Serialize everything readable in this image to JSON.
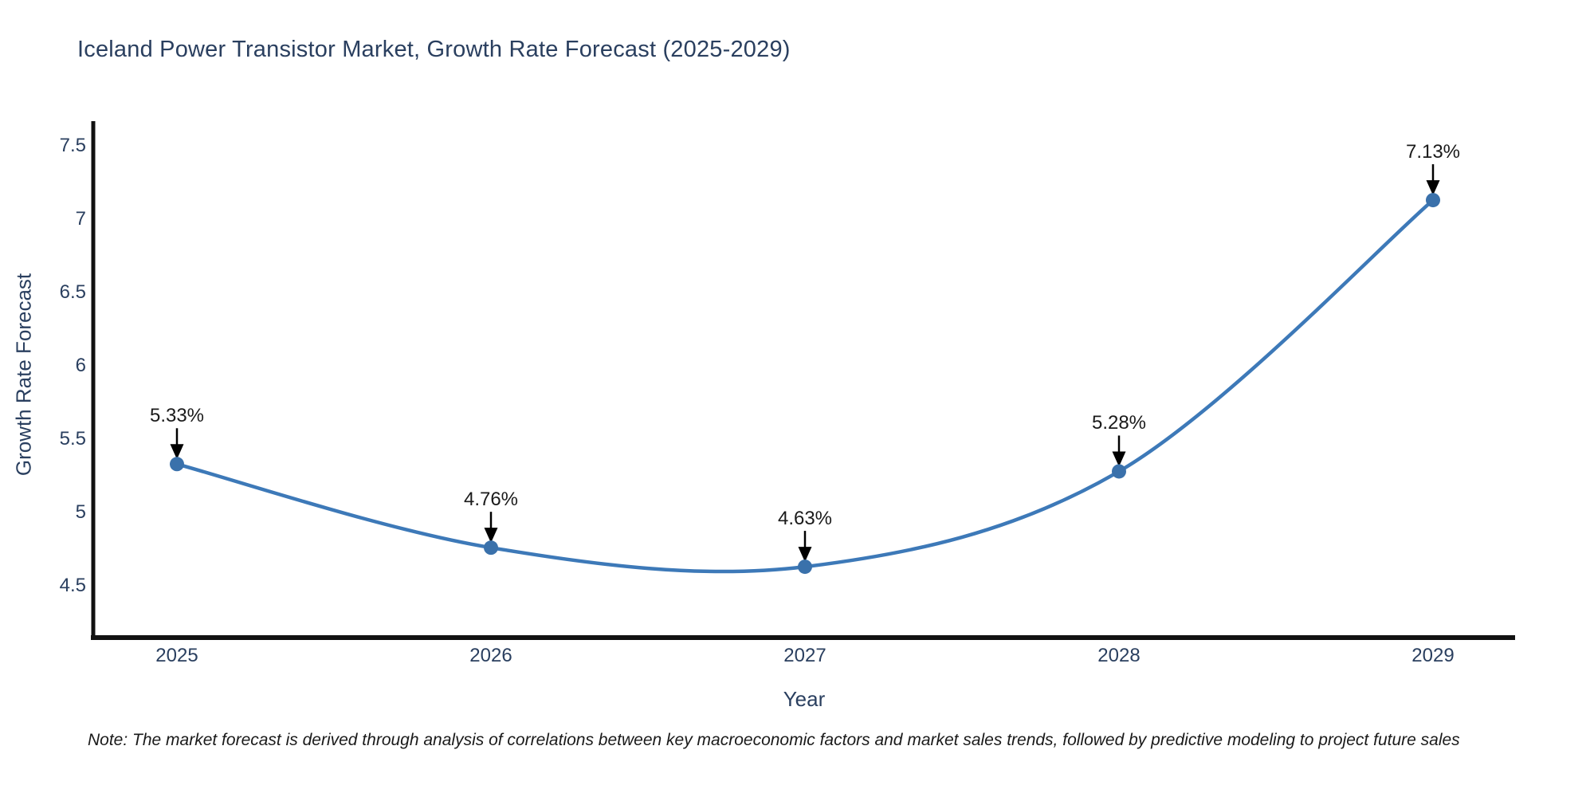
{
  "title": "Iceland Power Transistor Market, Growth Rate Forecast (2025-2029)",
  "note": "Note: The market forecast is derived through analysis of correlations between key macroeconomic factors and market sales trends, followed by predictive modeling to project future sales",
  "chart_data": {
    "type": "line",
    "title": "Iceland Power Transistor Market, Growth Rate Forecast (2025-2029)",
    "xlabel": "Year",
    "ylabel": "Growth Rate Forecast",
    "categories": [
      "2025",
      "2026",
      "2027",
      "2028",
      "2029"
    ],
    "series": [
      {
        "name": "Growth Rate Forecast",
        "values": [
          5.33,
          4.76,
          4.63,
          5.28,
          7.13
        ]
      }
    ],
    "point_labels": [
      "5.33%",
      "4.76%",
      "4.63%",
      "5.28%",
      "7.13%"
    ],
    "yticks": [
      "7.5",
      "7",
      "6.5",
      "6",
      "5.5",
      "5",
      "4.5"
    ],
    "ytick_values": [
      7.5,
      7.0,
      6.5,
      6.0,
      5.5,
      5.0,
      4.5
    ],
    "ylim": [
      4.15,
      7.65
    ],
    "grid": false,
    "legend_position": "none",
    "line_shape": "spline",
    "colors": {
      "line": "#3d79b8",
      "marker": "#3a71ab",
      "axis": "#111111",
      "arrow": "#000000",
      "tick_text": "#2a3f5f",
      "annotation_text": "#1a1a1a",
      "background": "#ffffff"
    }
  }
}
